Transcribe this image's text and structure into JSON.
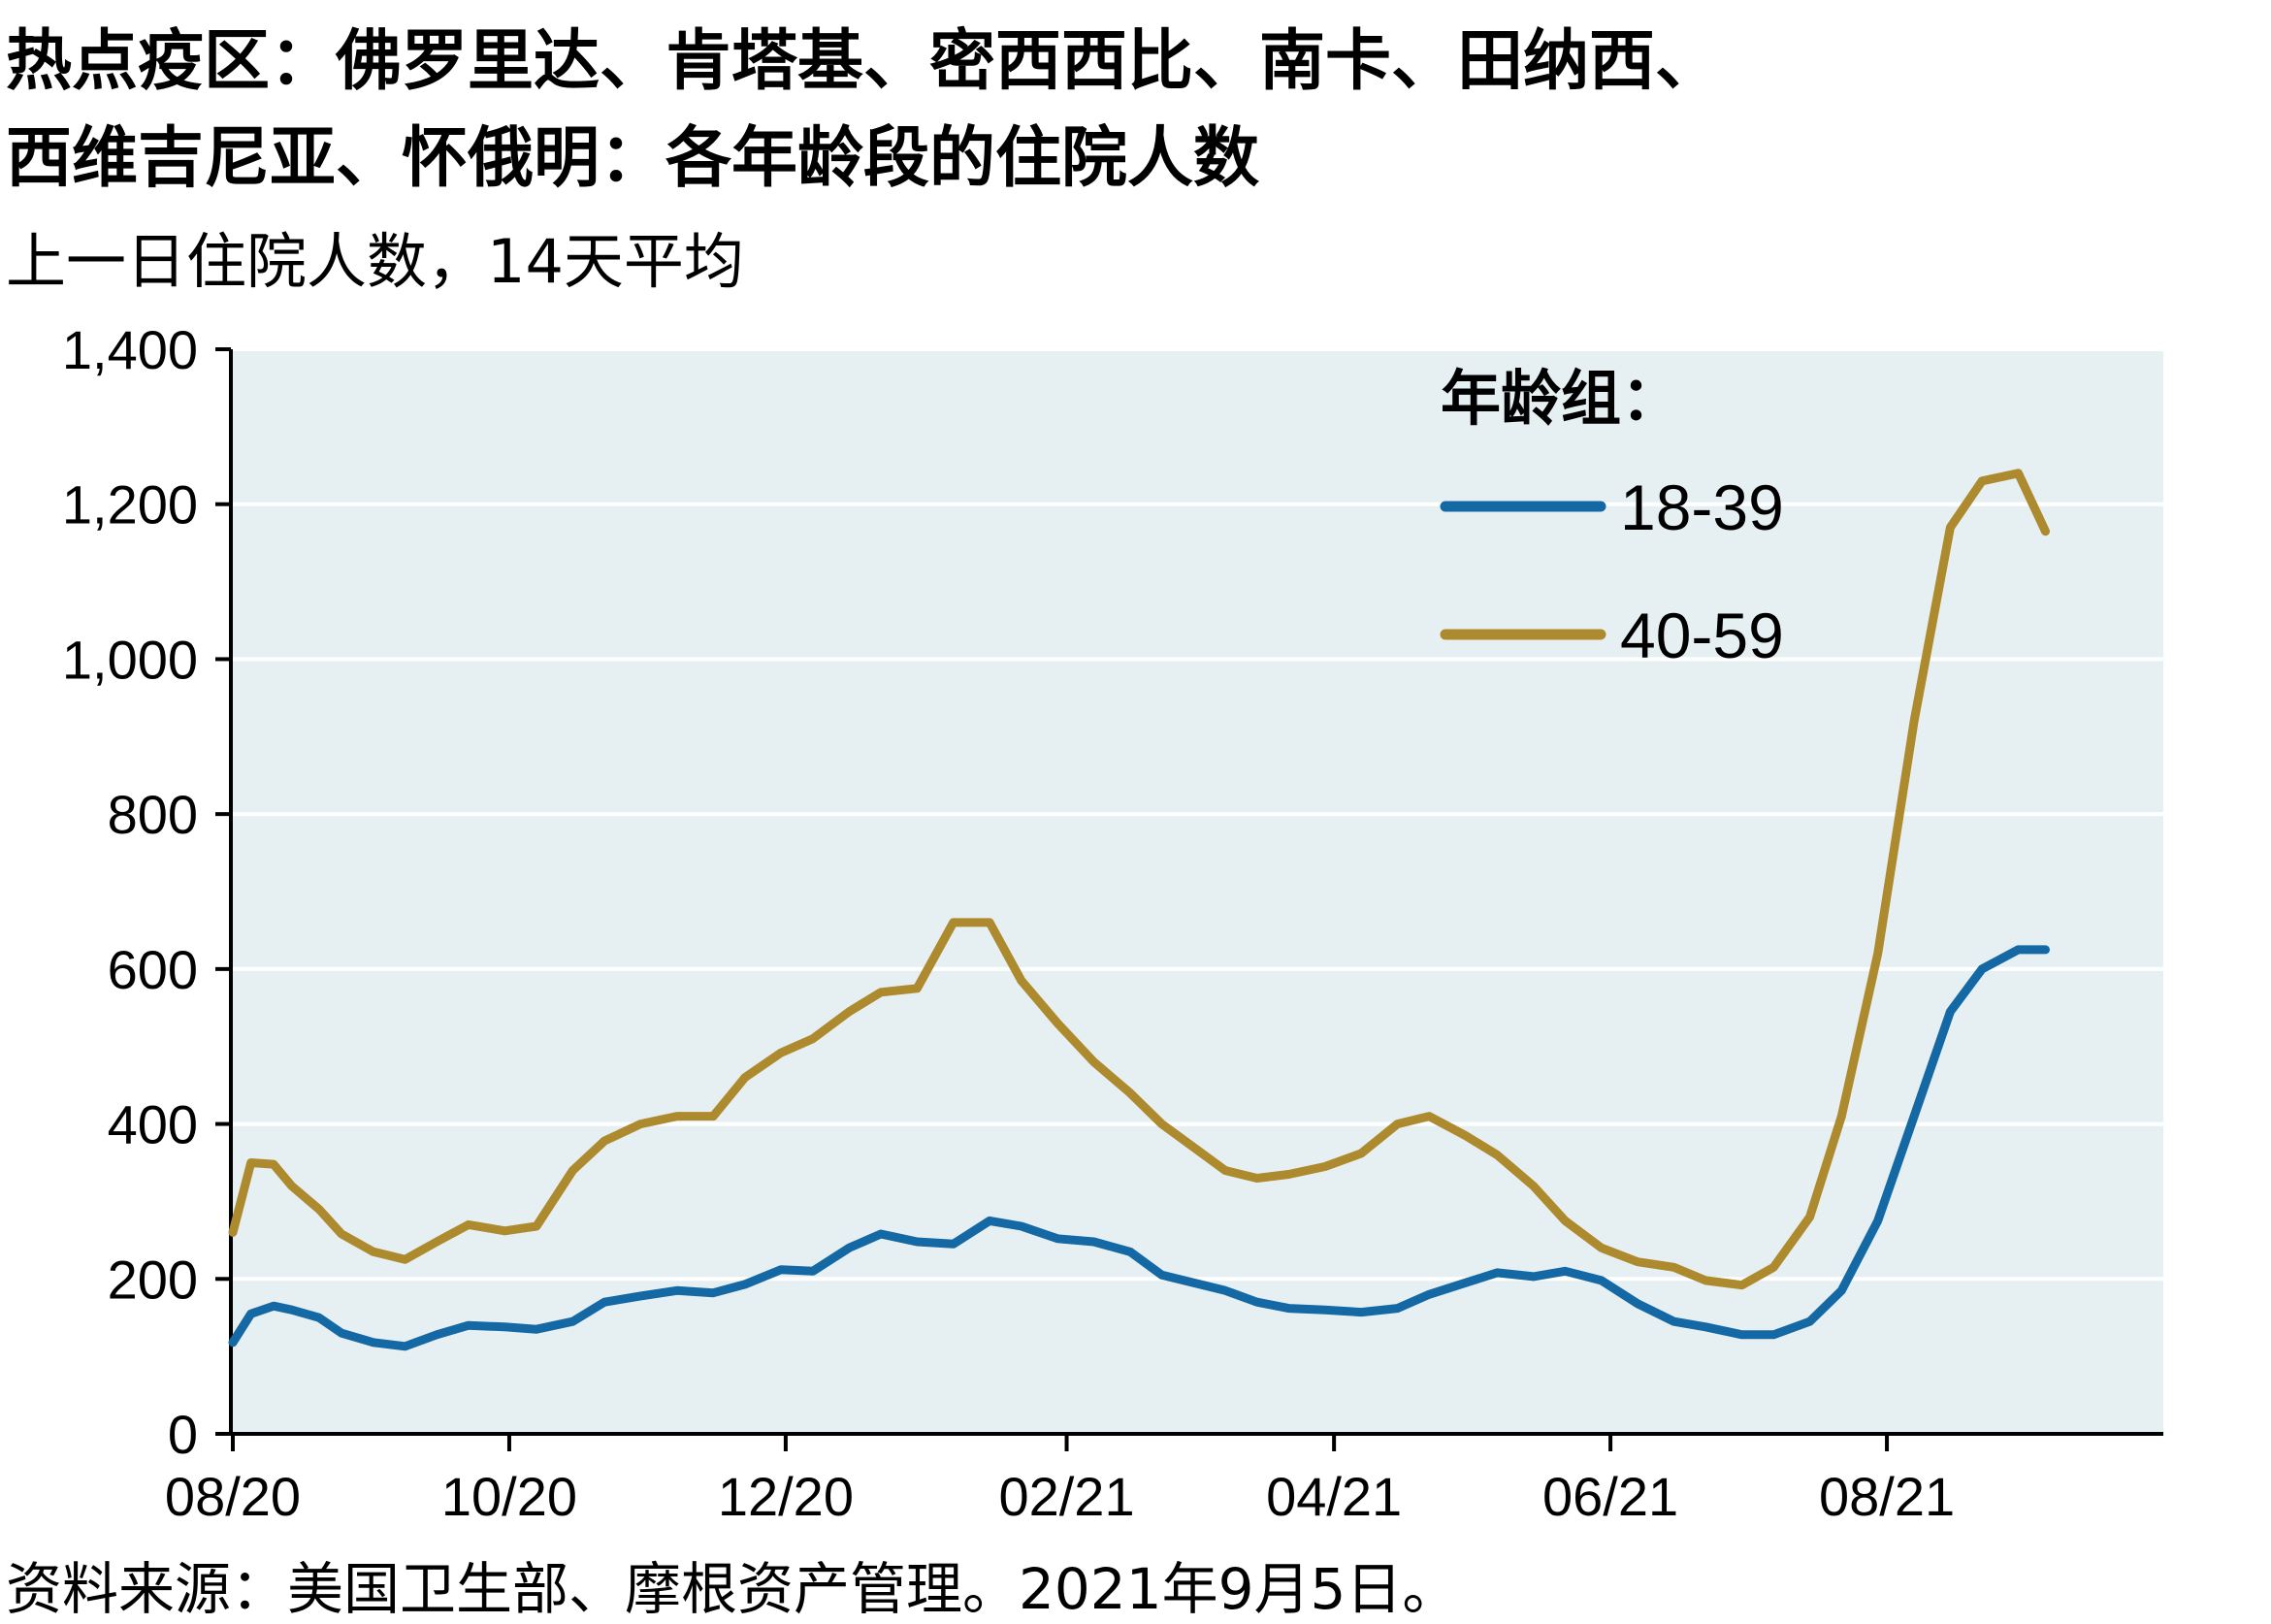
{
  "title_line1": "热点疫区：佛罗里达、肯塔基、密西西比、南卡、田纳西、",
  "title_line2": "西维吉尼亚、怀俄明：各年龄段的住院人数",
  "subtitle": "上一日住院人数，14天平均",
  "source": "资料来源：美国卫生部、摩根资产管理。2021年9月5日。",
  "colors": {
    "plot_bg": "#e6f0f3",
    "grid": "#ffffff",
    "series_1": "#1468a4",
    "series_2": "#ae8a2e"
  },
  "chart_data": {
    "type": "line",
    "x_start": "2020-08-01",
    "ylim": [
      0,
      1400
    ],
    "yticks": [
      0,
      200,
      400,
      600,
      800,
      1000,
      1200,
      1400
    ],
    "ytick_labels": [
      "0",
      "200",
      "400",
      "600",
      "800",
      "1,000",
      "1,200",
      "1,400"
    ],
    "xticks": [
      "08/20",
      "10/20",
      "12/20",
      "02/21",
      "04/21",
      "06/21",
      "08/21"
    ],
    "xtick_dates": [
      "2020-08-01",
      "2020-10-01",
      "2020-12-01",
      "2021-02-01",
      "2021-04-01",
      "2021-06-01",
      "2021-08-01"
    ],
    "xlim": [
      "2020-08-01",
      "2021-10-01"
    ],
    "legend_title": "年龄组：",
    "legend_position": "top-right",
    "grid": true,
    "series": [
      {
        "name": "18-39",
        "dates": [
          "2020-08-01",
          "2020-08-05",
          "2020-08-10",
          "2020-08-14",
          "2020-08-20",
          "2020-08-25",
          "2020-09-01",
          "2020-09-08",
          "2020-09-15",
          "2020-09-22",
          "2020-09-30",
          "2020-10-07",
          "2020-10-15",
          "2020-10-22",
          "2020-10-30",
          "2020-11-07",
          "2020-11-15",
          "2020-11-22",
          "2020-11-30",
          "2020-12-07",
          "2020-12-15",
          "2020-12-22",
          "2020-12-30",
          "2021-01-07",
          "2021-01-15",
          "2021-01-22",
          "2021-01-30",
          "2021-02-07",
          "2021-02-15",
          "2021-02-22",
          "2021-03-01",
          "2021-03-08",
          "2021-03-15",
          "2021-03-22",
          "2021-03-30",
          "2021-04-07",
          "2021-04-15",
          "2021-04-22",
          "2021-04-30",
          "2021-05-07",
          "2021-05-15",
          "2021-05-22",
          "2021-05-30",
          "2021-06-07",
          "2021-06-15",
          "2021-06-22",
          "2021-06-30",
          "2021-07-07",
          "2021-07-15",
          "2021-07-22",
          "2021-07-30",
          "2021-08-07",
          "2021-08-15",
          "2021-08-22",
          "2021-08-30",
          "2021-09-05"
        ],
        "values": [
          118,
          155,
          165,
          160,
          150,
          130,
          118,
          113,
          128,
          140,
          138,
          135,
          145,
          170,
          178,
          185,
          182,
          193,
          212,
          210,
          240,
          258,
          248,
          245,
          275,
          268,
          252,
          248,
          235,
          205,
          195,
          185,
          170,
          162,
          160,
          157,
          162,
          180,
          195,
          208,
          203,
          210,
          198,
          168,
          145,
          138,
          128,
          128,
          145,
          185,
          275,
          410,
          545,
          600,
          625,
          625
        ]
      },
      {
        "name": "40-59",
        "dates": [
          "2020-08-01",
          "2020-08-05",
          "2020-08-10",
          "2020-08-14",
          "2020-08-20",
          "2020-08-25",
          "2020-09-01",
          "2020-09-08",
          "2020-09-15",
          "2020-09-22",
          "2020-09-30",
          "2020-10-07",
          "2020-10-15",
          "2020-10-22",
          "2020-10-30",
          "2020-11-07",
          "2020-11-15",
          "2020-11-22",
          "2020-11-30",
          "2020-12-07",
          "2020-12-15",
          "2020-12-22",
          "2020-12-30",
          "2021-01-07",
          "2021-01-15",
          "2021-01-22",
          "2021-01-30",
          "2021-02-07",
          "2021-02-15",
          "2021-02-22",
          "2021-03-01",
          "2021-03-08",
          "2021-03-15",
          "2021-03-22",
          "2021-03-30",
          "2021-04-07",
          "2021-04-15",
          "2021-04-22",
          "2021-04-30",
          "2021-05-07",
          "2021-05-15",
          "2021-05-22",
          "2021-05-30",
          "2021-06-07",
          "2021-06-15",
          "2021-06-22",
          "2021-06-30",
          "2021-07-07",
          "2021-07-15",
          "2021-07-22",
          "2021-07-30",
          "2021-08-07",
          "2021-08-15",
          "2021-08-22",
          "2021-08-30",
          "2021-09-05"
        ],
        "values": [
          260,
          350,
          348,
          320,
          290,
          258,
          235,
          225,
          248,
          270,
          262,
          268,
          340,
          378,
          400,
          410,
          410,
          460,
          492,
          510,
          545,
          570,
          575,
          660,
          660,
          585,
          530,
          480,
          440,
          400,
          370,
          340,
          330,
          335,
          345,
          362,
          400,
          410,
          385,
          360,
          320,
          275,
          240,
          222,
          215,
          198,
          192,
          215,
          280,
          410,
          620,
          920,
          1170,
          1230,
          1240,
          1165
        ]
      }
    ]
  }
}
